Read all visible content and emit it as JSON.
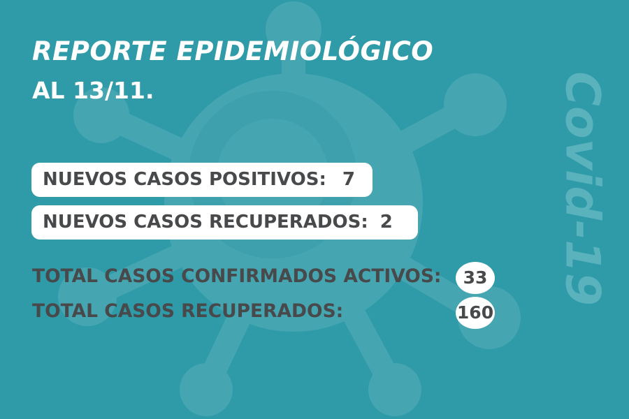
{
  "title": {
    "line1": "REPORTE EPIDEMIOLÓGICO",
    "line2": "AL 13/11."
  },
  "new_cases": [
    {
      "label": "NUEVOS CASOS POSITIVOS:",
      "value": "7"
    },
    {
      "label": "NUEVOS CASOS RECUPERADOS:",
      "value": "2"
    }
  ],
  "totals": [
    {
      "label": "TOTAL CASOS CONFIRMADOS ACTIVOS:",
      "value": "33"
    },
    {
      "label": "TOTAL CASOS RECUPERADOS:",
      "value": "160"
    }
  ],
  "side_label": "Covid-19",
  "colors": {
    "background": "#2f9aa8",
    "virus": "#4ba8b4",
    "text_dark": "#48494b",
    "white": "#ffffff"
  },
  "icons": {
    "background": "virus-icon"
  }
}
